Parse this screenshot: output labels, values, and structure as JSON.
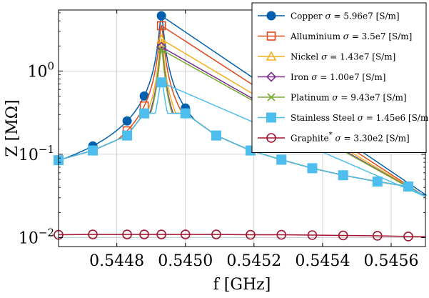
{
  "chart_data": {
    "type": "line",
    "xlabel": "f [GHz]",
    "ylabel": "Z [MΩ]",
    "xlim": [
      0.54463,
      0.5457
    ],
    "ylim": [
      0.0078,
      5.4
    ],
    "yscale": "log",
    "grid": true,
    "legend_position": "top-right",
    "x_ticks": [
      {
        "value": 0.5448,
        "label": "0.5448"
      },
      {
        "value": 0.545,
        "label": "0.5450"
      },
      {
        "value": 0.5452,
        "label": "0.5452"
      },
      {
        "value": 0.5454,
        "label": "0.5454"
      },
      {
        "value": 0.5456,
        "label": "0.5456"
      }
    ],
    "y_ticks": [
      {
        "value": 0.01,
        "base": "10",
        "exp": "−2"
      },
      {
        "value": 0.1,
        "base": "10",
        "exp": "−1"
      },
      {
        "value": 1,
        "base": "10",
        "exp": "0"
      }
    ],
    "peak_f": 0.54493,
    "marker_x": [
      0.54463,
      0.54473,
      0.54483,
      0.54488,
      0.54493,
      0.545,
      0.54509,
      0.54519,
      0.54528,
      0.54537,
      0.54546,
      0.54556,
      0.54565
    ],
    "series": [
      {
        "name": "Copper",
        "sigma": "5.96e7 [S/m]",
        "color": "#0060ad",
        "marker": "filled-circle",
        "peak": 4.6
      },
      {
        "name": "Alluminium",
        "sigma": "3.5e7 [S/m]",
        "color": "#e24a1b",
        "marker": "open-square",
        "peak": 3.5
      },
      {
        "name": "Nickel",
        "sigma": "1.43e7 [S/m]",
        "color": "#f2b01e",
        "marker": "open-triangle",
        "peak": 2.4
      },
      {
        "name": "Iron",
        "sigma": "1.00e7 [S/m]",
        "color": "#7b2d8e",
        "marker": "open-diamond",
        "peak": 1.95
      },
      {
        "name": "Platinum",
        "sigma": "9.43e7 [S/m]",
        "color": "#77ac30",
        "marker": "cross",
        "peak": 1.8
      },
      {
        "name": "Stainless Steel",
        "sigma": "1.45e6 [S/m]",
        "color": "#4dbeee",
        "marker": "filled-square",
        "peak": 0.73
      },
      {
        "name": "Graphite",
        "name_sup": "*",
        "sigma": "3.30e2 [S/m]",
        "color": "#a2142f",
        "marker": "open-circle",
        "flat": true,
        "values": [
          0.0108,
          0.0109,
          0.0109,
          0.0109,
          0.0109,
          0.0109,
          0.0109,
          0.0108,
          0.0108,
          0.0107,
          0.0106,
          0.0105,
          0.0103
        ]
      }
    ]
  }
}
